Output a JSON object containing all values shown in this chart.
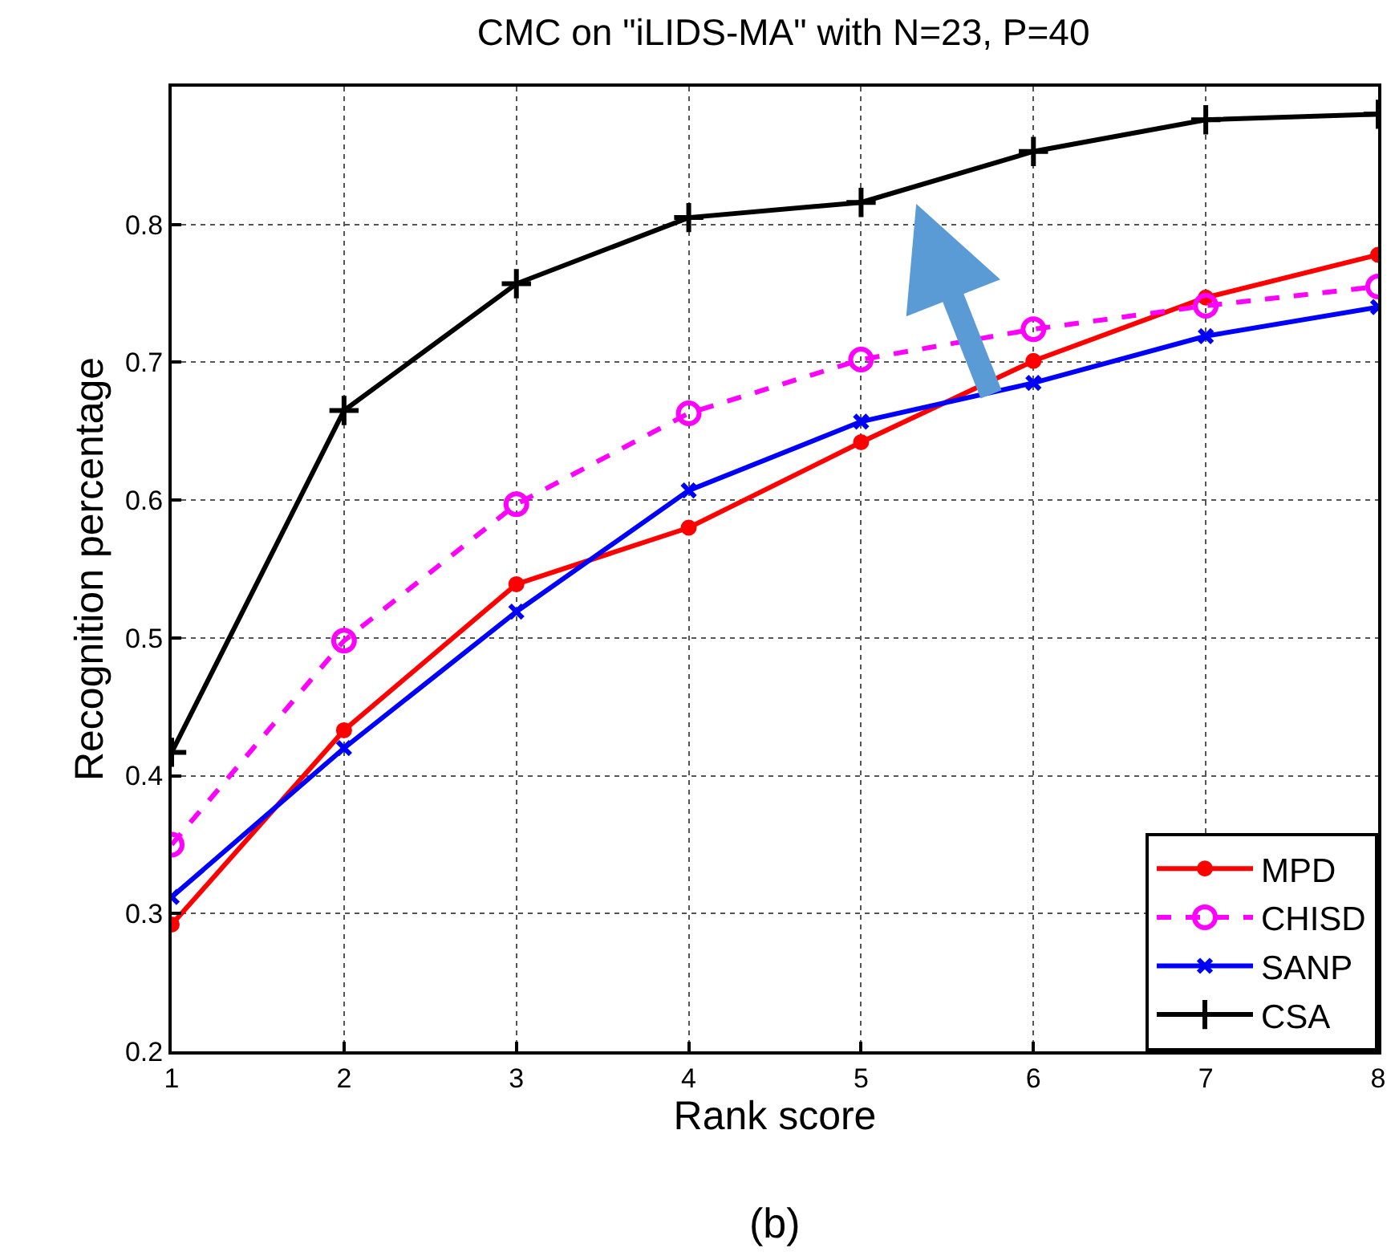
{
  "chart_data": {
    "type": "line",
    "title": "CMC on \"iLIDS-MA\" with N=23, P=40",
    "xlabel": "Rank score",
    "ylabel": "Recognition percentage",
    "x": [
      1,
      2,
      3,
      4,
      5,
      6,
      7,
      8
    ],
    "series": [
      {
        "name": "MPD",
        "color": "#ff0000",
        "marker": "circle",
        "line_style": "solid",
        "values": [
          0.292,
          0.433,
          0.539,
          0.58,
          0.642,
          0.701,
          0.747,
          0.778
        ]
      },
      {
        "name": "CHISD",
        "color": "#ff00ff",
        "marker": "circle-open",
        "line_style": "dashed",
        "values": [
          0.35,
          0.498,
          0.597,
          0.663,
          0.702,
          0.724,
          0.741,
          0.755
        ]
      },
      {
        "name": "SANP",
        "color": "#0000ff",
        "marker": "cross",
        "line_style": "solid",
        "values": [
          0.312,
          0.42,
          0.519,
          0.607,
          0.657,
          0.685,
          0.719,
          0.74
        ]
      },
      {
        "name": "CSA",
        "color": "#000000",
        "marker": "plus",
        "line_style": "solid",
        "values": [
          0.417,
          0.665,
          0.757,
          0.805,
          0.816,
          0.853,
          0.876,
          0.88
        ]
      }
    ],
    "xlim": [
      1,
      8
    ],
    "xticks": [
      1,
      2,
      3,
      4,
      5,
      6,
      7,
      8
    ],
    "ylim": [
      0.2,
      0.9
    ],
    "yticks": [
      0.2,
      0.3,
      0.4,
      0.5,
      0.6,
      0.7,
      0.8,
      {
        "value": 0.9,
        "label": null
      }
    ],
    "grid": true,
    "legend": "bottom right",
    "annotations": [
      "(b)"
    ]
  }
}
